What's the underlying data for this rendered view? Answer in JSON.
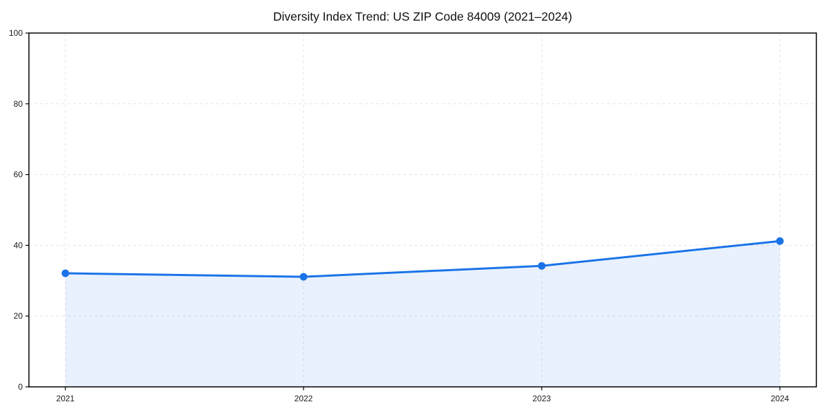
{
  "page": {
    "background": "#ffffff"
  },
  "chart_data": {
    "type": "area",
    "title": "Diversity Index Trend: US ZIP Code 84009 (2021–2024)",
    "categories": [
      "2021",
      "2022",
      "2023",
      "2024"
    ],
    "series": [
      {
        "name": "Diversity Index",
        "values": [
          32.1,
          31.1,
          34.2,
          41.2
        ]
      }
    ],
    "xlabel": "",
    "ylabel": "",
    "ylim": [
      0,
      100
    ],
    "yticks": [
      0,
      20,
      40,
      60,
      80,
      100
    ],
    "grid": "dashed light-gray gridlines, horizontal at y-ticks and vertical at each year",
    "legend": "none",
    "marker": "filled circle",
    "colors": {
      "line": "#1a73e8",
      "marker": "#1a73e8",
      "fill": "rgba(26,115,232,0.10)",
      "grid": "#e4e4e4",
      "axis": "#000000",
      "text": "#1a1a1a"
    }
  }
}
